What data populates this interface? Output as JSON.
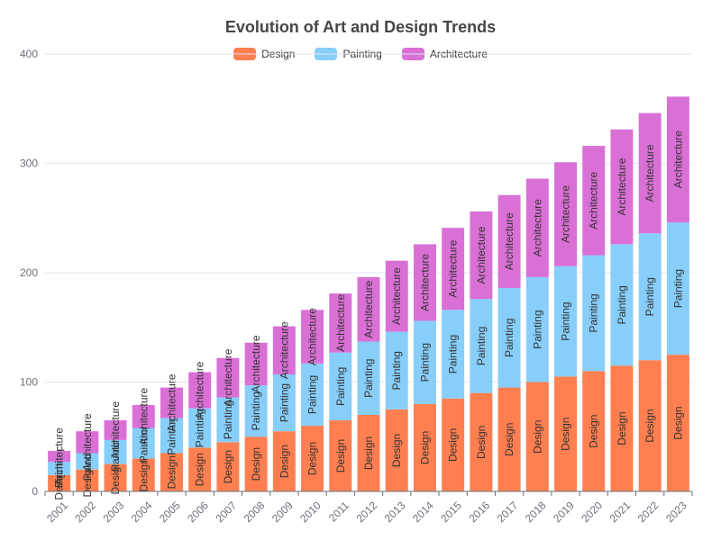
{
  "chart_data": {
    "type": "bar",
    "stacked": true,
    "title": "Evolution of Art and Design Trends",
    "xlabel": "",
    "ylabel": "",
    "ylim": [
      0,
      400
    ],
    "yticks": [
      0,
      100,
      200,
      300,
      400
    ],
    "grid": true,
    "legend_position": "top-center",
    "categories": [
      "2001",
      "2002",
      "2003",
      "2004",
      "2005",
      "2006",
      "2007",
      "2008",
      "2009",
      "2010",
      "2011",
      "2012",
      "2013",
      "2014",
      "2015",
      "2016",
      "2017",
      "2018",
      "2019",
      "2020",
      "2021",
      "2022",
      "2023"
    ],
    "series": [
      {
        "name": "Design",
        "color": "#ff7f50",
        "values": [
          15,
          20,
          25,
          30,
          35,
          40,
          45,
          50,
          55,
          60,
          65,
          70,
          75,
          80,
          85,
          90,
          95,
          100,
          105,
          110,
          115,
          120,
          125
        ]
      },
      {
        "name": "Painting",
        "color": "#87cefa",
        "values": [
          12,
          15,
          22,
          28,
          32,
          36,
          41,
          47,
          52,
          57,
          62,
          67,
          71,
          76,
          81,
          86,
          91,
          96,
          101,
          106,
          111,
          116,
          121
        ]
      },
      {
        "name": "Architecture",
        "color": "#da70d6",
        "values": [
          10,
          20,
          18,
          21,
          28,
          33,
          36,
          39,
          44,
          49,
          54,
          59,
          65,
          70,
          75,
          80,
          85,
          90,
          95,
          100,
          105,
          110,
          115
        ]
      }
    ]
  }
}
